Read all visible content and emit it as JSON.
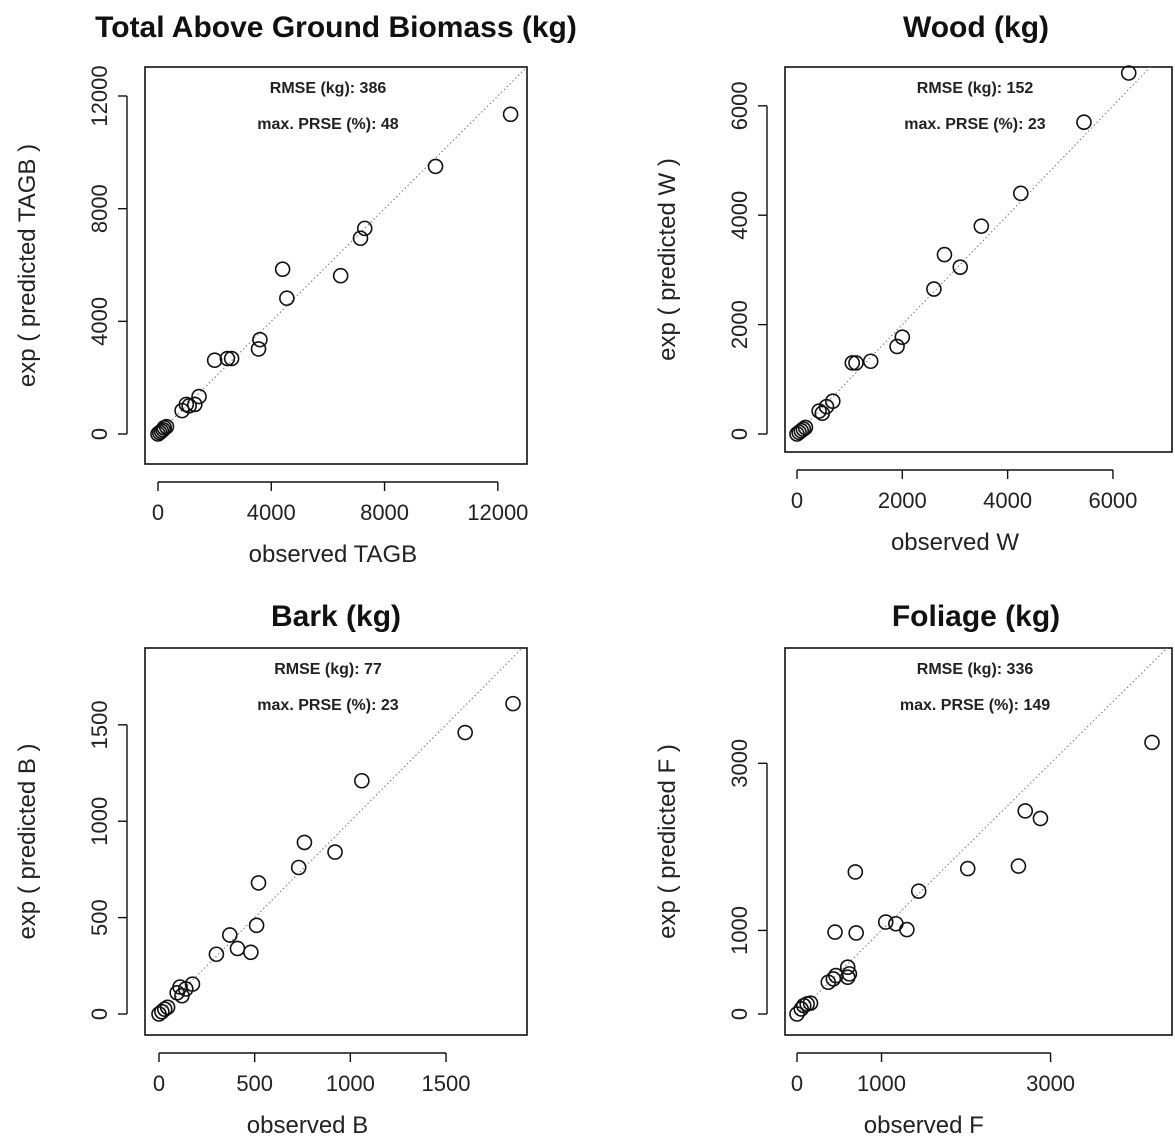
{
  "chart_data": [
    {
      "type": "scatter",
      "title": "Total Above Ground Biomass (kg)",
      "xlabel": "observed TAGB",
      "ylabel": "exp ( predicted TAGB )",
      "xlim": [
        0,
        12500
      ],
      "ylim": [
        0,
        12000
      ],
      "xticks": [
        0,
        4000,
        8000,
        12000
      ],
      "yticks": [
        0,
        4000,
        8000,
        12000
      ],
      "stats": [
        "RMSE (kg): 386",
        "max. PRSE (%): 48"
      ],
      "reference_line": "y = x",
      "points": [
        {
          "x": 0,
          "y": 0
        },
        {
          "x": 60,
          "y": 50
        },
        {
          "x": 120,
          "y": 100
        },
        {
          "x": 180,
          "y": 150
        },
        {
          "x": 220,
          "y": 220
        },
        {
          "x": 300,
          "y": 260
        },
        {
          "x": 850,
          "y": 830
        },
        {
          "x": 1000,
          "y": 1050
        },
        {
          "x": 1100,
          "y": 1000
        },
        {
          "x": 1300,
          "y": 1050
        },
        {
          "x": 1450,
          "y": 1330
        },
        {
          "x": 2000,
          "y": 2620
        },
        {
          "x": 2450,
          "y": 2680
        },
        {
          "x": 2600,
          "y": 2680
        },
        {
          "x": 3550,
          "y": 3020
        },
        {
          "x": 3600,
          "y": 3350
        },
        {
          "x": 4400,
          "y": 5850
        },
        {
          "x": 4550,
          "y": 4820
        },
        {
          "x": 6450,
          "y": 5620
        },
        {
          "x": 7150,
          "y": 6950
        },
        {
          "x": 7300,
          "y": 7300
        },
        {
          "x": 9800,
          "y": 9500
        },
        {
          "x": 12450,
          "y": 11350
        }
      ]
    },
    {
      "type": "scatter",
      "title": "Wood (kg)",
      "xlabel": "observed W",
      "ylabel": "exp ( predicted W )",
      "xlim": [
        0,
        6400
      ],
      "ylim": [
        0,
        6600
      ],
      "xticks": [
        0,
        2000,
        4000,
        6000
      ],
      "yticks": [
        0,
        2000,
        4000,
        6000
      ],
      "stats": [
        "RMSE (kg): 152",
        "max. PRSE (%): 23"
      ],
      "reference_line": "y = x",
      "points": [
        {
          "x": 0,
          "y": 0
        },
        {
          "x": 40,
          "y": 30
        },
        {
          "x": 80,
          "y": 60
        },
        {
          "x": 120,
          "y": 90
        },
        {
          "x": 160,
          "y": 120
        },
        {
          "x": 420,
          "y": 420
        },
        {
          "x": 480,
          "y": 380
        },
        {
          "x": 560,
          "y": 500
        },
        {
          "x": 680,
          "y": 600
        },
        {
          "x": 1050,
          "y": 1300
        },
        {
          "x": 1120,
          "y": 1300
        },
        {
          "x": 1400,
          "y": 1330
        },
        {
          "x": 1900,
          "y": 1600
        },
        {
          "x": 2000,
          "y": 1770
        },
        {
          "x": 2600,
          "y": 2650
        },
        {
          "x": 2800,
          "y": 3280
        },
        {
          "x": 3100,
          "y": 3050
        },
        {
          "x": 3500,
          "y": 3800
        },
        {
          "x": 4250,
          "y": 4400
        },
        {
          "x": 5450,
          "y": 5700
        },
        {
          "x": 6300,
          "y": 6600
        }
      ]
    },
    {
      "type": "scatter",
      "title": "Bark (kg)",
      "xlabel": "observed B",
      "ylabel": "exp ( predicted B )",
      "xlim": [
        0,
        1850
      ],
      "ylim": [
        0,
        1800
      ],
      "xticks": [
        0,
        500,
        1000,
        1500
      ],
      "yticks": [
        0,
        500,
        1000,
        1500
      ],
      "stats": [
        "RMSE (kg): 77",
        "max. PRSE (%): 23"
      ],
      "reference_line": "y = x",
      "points": [
        {
          "x": 0,
          "y": 0
        },
        {
          "x": 15,
          "y": 12
        },
        {
          "x": 30,
          "y": 25
        },
        {
          "x": 45,
          "y": 35
        },
        {
          "x": 95,
          "y": 110
        },
        {
          "x": 110,
          "y": 140
        },
        {
          "x": 120,
          "y": 95
        },
        {
          "x": 140,
          "y": 130
        },
        {
          "x": 175,
          "y": 155
        },
        {
          "x": 300,
          "y": 310
        },
        {
          "x": 370,
          "y": 410
        },
        {
          "x": 410,
          "y": 340
        },
        {
          "x": 480,
          "y": 320
        },
        {
          "x": 510,
          "y": 460
        },
        {
          "x": 520,
          "y": 680
        },
        {
          "x": 730,
          "y": 760
        },
        {
          "x": 760,
          "y": 890
        },
        {
          "x": 920,
          "y": 840
        },
        {
          "x": 1060,
          "y": 1210
        },
        {
          "x": 1600,
          "y": 1460
        },
        {
          "x": 1850,
          "y": 1610
        }
      ]
    },
    {
      "type": "scatter",
      "title": "Foliage (kg)",
      "xlabel": "observed F",
      "ylabel": "exp ( predicted F )",
      "xlim": [
        0,
        4200
      ],
      "ylim": [
        0,
        4200
      ],
      "xticks": [
        0,
        1000,
        3000
      ],
      "yticks": [
        0,
        1000,
        3000
      ],
      "stats": [
        "RMSE (kg): 336",
        "max. PRSE (%): 149"
      ],
      "reference_line": "y = x",
      "points": [
        {
          "x": 0,
          "y": 0
        },
        {
          "x": 50,
          "y": 60
        },
        {
          "x": 80,
          "y": 100
        },
        {
          "x": 120,
          "y": 120
        },
        {
          "x": 160,
          "y": 130
        },
        {
          "x": 370,
          "y": 380
        },
        {
          "x": 430,
          "y": 420
        },
        {
          "x": 460,
          "y": 460
        },
        {
          "x": 600,
          "y": 440
        },
        {
          "x": 620,
          "y": 480
        },
        {
          "x": 600,
          "y": 560
        },
        {
          "x": 450,
          "y": 980
        },
        {
          "x": 700,
          "y": 970
        },
        {
          "x": 690,
          "y": 1700
        },
        {
          "x": 1050,
          "y": 1100
        },
        {
          "x": 1170,
          "y": 1080
        },
        {
          "x": 1300,
          "y": 1010
        },
        {
          "x": 1440,
          "y": 1470
        },
        {
          "x": 2020,
          "y": 1740
        },
        {
          "x": 2620,
          "y": 1770
        },
        {
          "x": 2700,
          "y": 2430
        },
        {
          "x": 2880,
          "y": 2340
        },
        {
          "x": 4200,
          "y": 3250
        }
      ]
    }
  ]
}
